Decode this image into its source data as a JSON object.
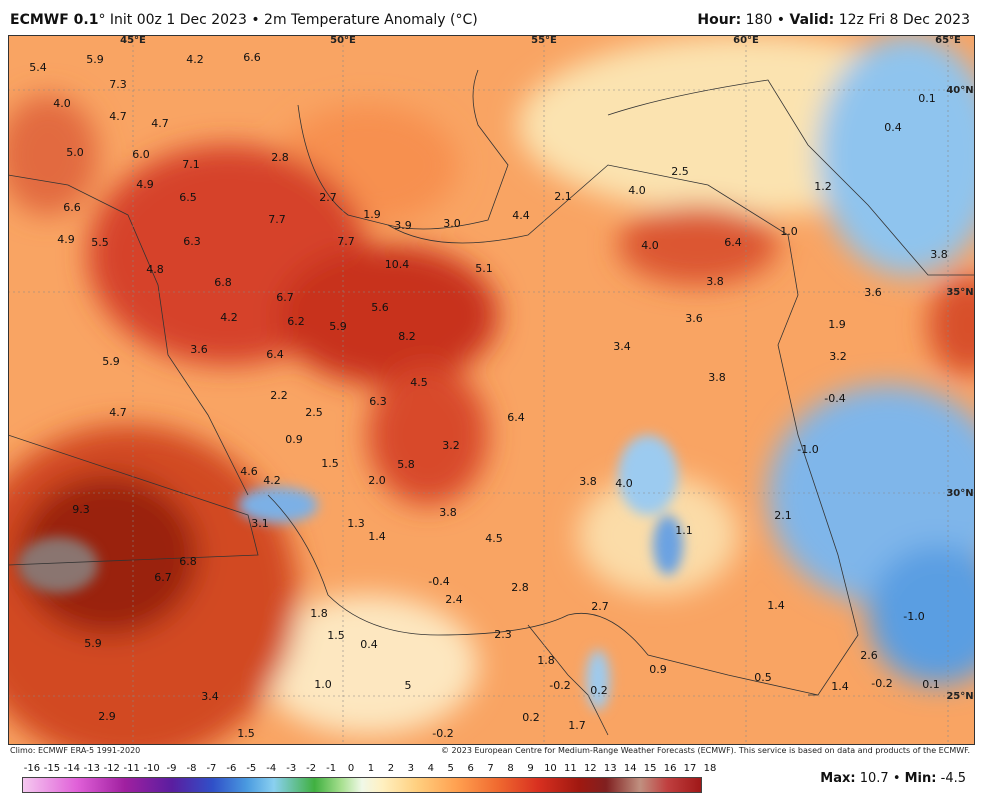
{
  "header": {
    "model": "ECMWF 0.1",
    "info": "° Init 00z 1 Dec 2023 • 2m Temperature Anomaly (°C)",
    "hour_label": "Hour:",
    "hour": "180",
    "valid_label": "Valid:",
    "valid": "12z Fri 8 Dec 2023"
  },
  "map": {
    "lon_labels": [
      "45°E",
      "50°E",
      "55°E",
      "60°E",
      "65°E"
    ],
    "lat_labels": [
      "40°N",
      "35°N",
      "30°N",
      "25°N"
    ],
    "labels": [
      "5.4",
      "5.9",
      "7.3",
      "4.2",
      "6.6",
      "4.0",
      "4.7",
      "4.7",
      "5.0",
      "6.0",
      "7.1",
      "2.8",
      "4.9",
      "6.5",
      "6.6",
      "2.7",
      "4.9",
      "5.5",
      "6.3",
      "7.7",
      "1.9",
      "3.9",
      "3.0",
      "4.4",
      "2.1",
      "4.0",
      "2.5",
      "1.2",
      "7.7",
      "10.4",
      "5.1",
      "4.0",
      "6.4",
      "1.0",
      "3.8",
      "4.8",
      "6.8",
      "3.8",
      "3.6",
      "6.7",
      "5.6",
      "4.2",
      "6.2",
      "5.9",
      "8.2",
      "3.6",
      "1.9",
      "3.6",
      "6.4",
      "3.4",
      "3.2",
      "5.9",
      "4.5",
      "3.8",
      "2.2",
      "6.3",
      "-0.4",
      "4.7",
      "2.5",
      "6.4",
      "0.9",
      "3.2",
      "-1.0",
      "1.5",
      "5.8",
      "4.6",
      "4.2",
      "2.0",
      "3.8",
      "4.0",
      "9.3",
      "3.8",
      "2.1",
      "3.1",
      "1.3",
      "1.4",
      "4.5",
      "1.1",
      "6.8",
      "6.7",
      "-0.4",
      "2.8",
      "2.4",
      "2.7",
      "1.4",
      "-1.0",
      "1.8",
      "1.5",
      "0.4",
      "5.9",
      "2.3",
      "1.8",
      "2.6",
      "0.9",
      "0.5",
      "1.0",
      "3.4",
      "5",
      "-0.2",
      "0.2",
      "1.4",
      "-0.2",
      "0.1",
      "2.9",
      "0.2",
      "1.7",
      "1.5",
      "-0.2",
      "0.1",
      "0.4"
    ]
  },
  "footer": {
    "climo": "Climo: ECMWF ERA-5 1991-2020",
    "copyright": "© 2023 European Centre for Medium-Range Weather Forecasts (ECMWF). This service is based on data and products of the ECMWF.",
    "max_label": "Max:",
    "max": "10.7",
    "min_label": "Min:",
    "min": "-4.5"
  },
  "colorbar": {
    "ticks": [
      -16,
      -15,
      -14,
      -13,
      -12,
      -11,
      -10,
      -9,
      -8,
      -7,
      -6,
      -5,
      -4,
      -3,
      -2,
      -1,
      0,
      1,
      2,
      3,
      4,
      5,
      6,
      7,
      8,
      9,
      10,
      11,
      12,
      13,
      14,
      15,
      16,
      17,
      18
    ]
  }
}
